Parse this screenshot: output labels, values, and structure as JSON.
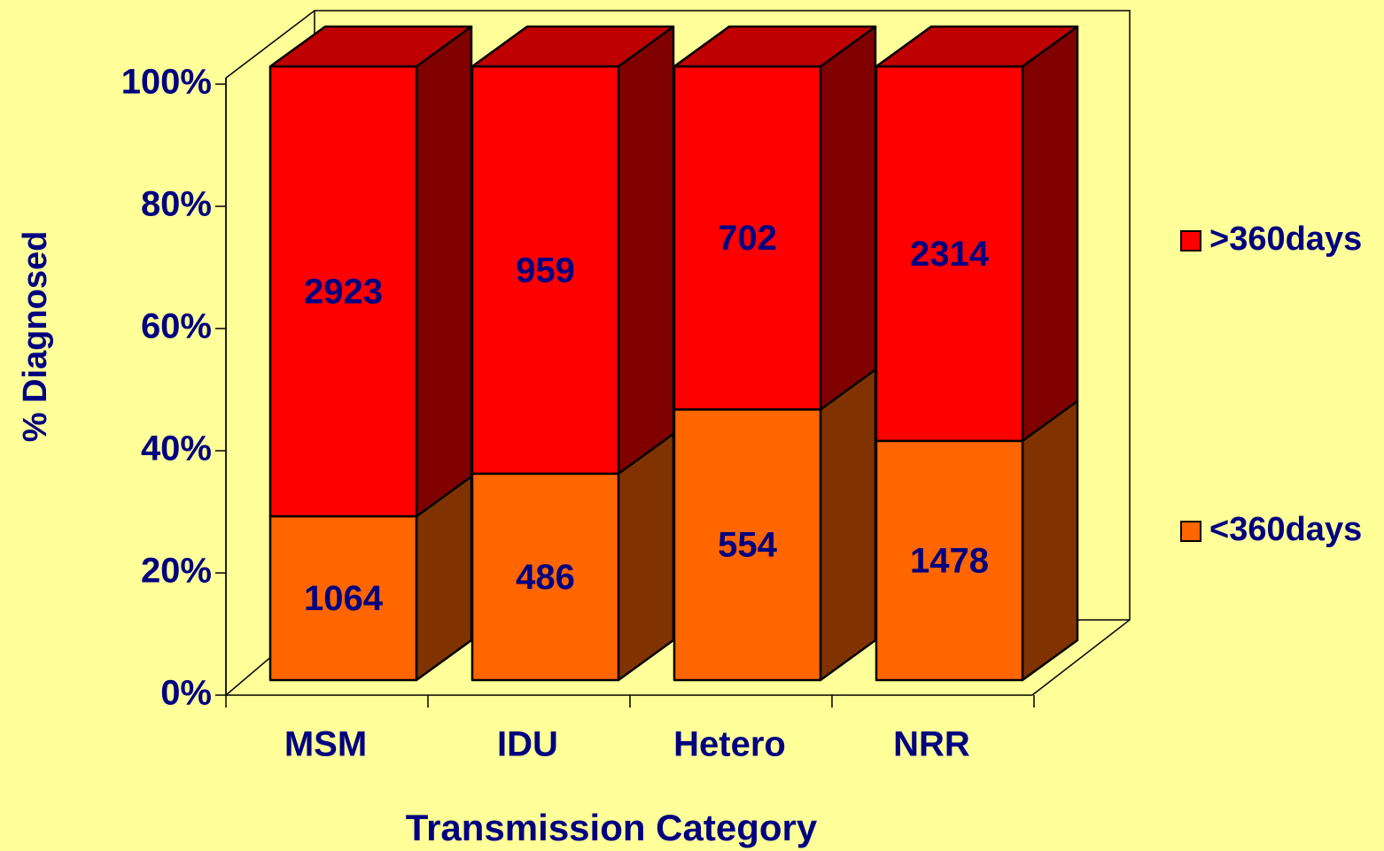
{
  "chart_data": {
    "type": "bar",
    "stacked": "percent",
    "x_label": "Transmission Category",
    "y_label": "% Diagnosed",
    "categories": [
      "MSM",
      "IDU",
      "Hetero",
      "NRR"
    ],
    "series": [
      {
        "name": "<360days",
        "color": "#FF6600",
        "values": [
          1064,
          486,
          554,
          1478
        ]
      },
      {
        "name": ">360days",
        "color": "#FF0000",
        "values": [
          2923,
          959,
          702,
          2314
        ]
      }
    ],
    "ylim": [
      0,
      100
    ],
    "yticks": [
      {
        "value": 0,
        "label": "0%"
      },
      {
        "value": 20,
        "label": "20%"
      },
      {
        "value": 40,
        "label": "40%"
      },
      {
        "value": 60,
        "label": "60%"
      },
      {
        "value": 80,
        "label": "80%"
      },
      {
        "value": 100,
        "label": "100%"
      }
    ],
    "legend": "right"
  }
}
